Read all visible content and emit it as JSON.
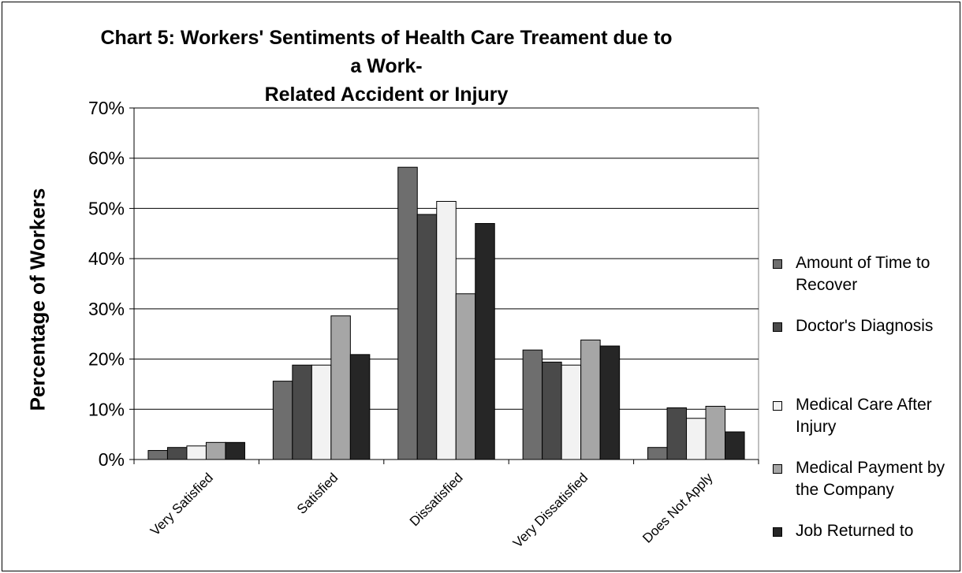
{
  "chart_data": {
    "type": "bar",
    "title_lines": [
      "Chart 5: Workers' Sentiments of Health Care Treament due to a Work-",
      "Related Accident or Injury"
    ],
    "ylabel": "Percentage of Workers",
    "xlabel": "",
    "ylim": [
      0,
      70
    ],
    "yticks": [
      "0%",
      "10%",
      "20%",
      "30%",
      "40%",
      "50%",
      "60%",
      "70%"
    ],
    "categories": [
      "Very Satisfied",
      "Satisfied",
      "Dissatisfied",
      "Very Dissatisfied",
      "Does Not Apply"
    ],
    "series": [
      {
        "name": "Amount of Time to Recover",
        "color": "#6e6e6e",
        "values": [
          1.8,
          15.6,
          58.2,
          21.8,
          2.4
        ]
      },
      {
        "name": "Doctor's Diagnosis",
        "color": "#4a4a4a",
        "values": [
          2.4,
          18.8,
          48.8,
          19.4,
          10.3
        ]
      },
      {
        "name": "Medical Care After Injury",
        "color": "#f2f2f2",
        "values": [
          2.7,
          18.8,
          51.4,
          18.8,
          8.2
        ]
      },
      {
        "name": "Medical Payment by the Company",
        "color": "#a6a6a6",
        "values": [
          3.4,
          28.6,
          33.0,
          23.8,
          10.6
        ]
      },
      {
        "name": "Job Returned to",
        "color": "#262626",
        "values": [
          3.4,
          20.9,
          47.0,
          22.6,
          5.5
        ]
      }
    ],
    "grid": true,
    "legend_position": "right"
  }
}
